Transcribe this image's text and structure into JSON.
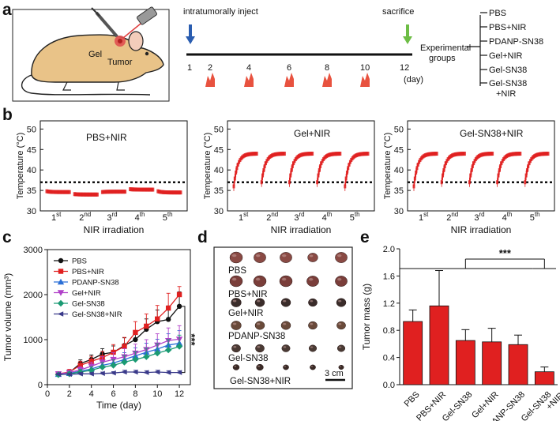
{
  "panel_letters": {
    "a": "a",
    "b": "b",
    "c": "c",
    "d": "d",
    "e": "e"
  },
  "panel_a": {
    "inject_label": "intratumorally inject",
    "sacrifice_label": "sacrifice",
    "gel_label": "Gel",
    "tumor_label": "Tumor",
    "timeline_days": [
      "1",
      "2",
      "4",
      "6",
      "8",
      "10",
      "12"
    ],
    "day_unit": "(day)",
    "groups_title_line1": "Experimental",
    "groups_title_line2": "groups",
    "groups": [
      "PBS",
      "PBS+NIR",
      "PDANP-SN38",
      "Gel+NIR",
      "Gel-SN38",
      "Gel-SN38\n+NIR"
    ],
    "colors": {
      "inject_arrow": "#2a5db0",
      "sacrifice_arrow": "#6dbd45",
      "laser": "#e8523f",
      "mouse_body": "#e9c388"
    }
  },
  "chart_data": [
    {
      "type": "scatter",
      "panel": "b1",
      "annotation": "PBS+NIR",
      "ylabel": "Temperature (°C)",
      "xlabel": "NIR irradiation",
      "ylim": [
        30,
        52
      ],
      "yticks": [
        "30",
        "35",
        "40",
        "45",
        "50"
      ],
      "x_groups": [
        {
          "base": "1",
          "sup": "st"
        },
        {
          "base": "2",
          "sup": "nd"
        },
        {
          "base": "3",
          "sup": "rd"
        },
        {
          "base": "4",
          "sup": "th"
        },
        {
          "base": "5",
          "sup": "th"
        }
      ],
      "threshold": 37,
      "segments": [
        {
          "start": 34.8,
          "plateau": 34.6
        },
        {
          "start": 34.1,
          "plateau": 34.0
        },
        {
          "start": 34.6,
          "plateau": 34.7
        },
        {
          "start": 35.3,
          "plateau": 35.2
        },
        {
          "start": 34.8,
          "plateau": 34.5
        }
      ],
      "color": "#e02020"
    },
    {
      "type": "scatter",
      "panel": "b2",
      "annotation": "Gel+NIR",
      "ylabel": "Temperature (°C)",
      "xlabel": "NIR irradiation",
      "ylim": [
        30,
        52
      ],
      "yticks": [
        "30",
        "35",
        "40",
        "45",
        "50"
      ],
      "x_groups": [
        {
          "base": "1",
          "sup": "st"
        },
        {
          "base": "2",
          "sup": "nd"
        },
        {
          "base": "3",
          "sup": "rd"
        },
        {
          "base": "4",
          "sup": "th"
        },
        {
          "base": "5",
          "sup": "th"
        }
      ],
      "threshold": 37,
      "segments": [
        {
          "start": 36,
          "plateau": 44
        },
        {
          "start": 37,
          "plateau": 44
        },
        {
          "start": 37,
          "plateau": 44
        },
        {
          "start": 37,
          "plateau": 44
        },
        {
          "start": 36,
          "plateau": 44
        }
      ],
      "color": "#e02020"
    },
    {
      "type": "scatter",
      "panel": "b3",
      "annotation": "Gel-SN38+NIR",
      "ylabel": "Temperature (°C)",
      "xlabel": "NIR irradiation",
      "ylim": [
        30,
        52
      ],
      "yticks": [
        "30",
        "35",
        "40",
        "45",
        "50"
      ],
      "x_groups": [
        {
          "base": "1",
          "sup": "st"
        },
        {
          "base": "2",
          "sup": "nd"
        },
        {
          "base": "3",
          "sup": "rd"
        },
        {
          "base": "4",
          "sup": "th"
        },
        {
          "base": "5",
          "sup": "th"
        }
      ],
      "threshold": 37,
      "segments": [
        {
          "start": 36,
          "plateau": 44
        },
        {
          "start": 37,
          "plateau": 44
        },
        {
          "start": 37,
          "plateau": 44
        },
        {
          "start": 37,
          "plateau": 44
        },
        {
          "start": 37,
          "plateau": 44
        }
      ],
      "color": "#e02020"
    },
    {
      "type": "line",
      "panel": "c",
      "ylabel": "Tumor volume (mm³)",
      "xlabel": "Time (day)",
      "ylim": [
        0,
        3000
      ],
      "xlim": [
        0,
        13
      ],
      "yticks": [
        "0",
        "1000",
        "2000",
        "3000"
      ],
      "xticks": [
        "0",
        "2",
        "4",
        "6",
        "8",
        "10",
        "12"
      ],
      "significance": "***",
      "x": [
        1,
        2,
        3,
        4,
        5,
        6,
        7,
        8,
        9,
        10,
        11,
        12
      ],
      "series": [
        {
          "name": "PBS",
          "color": "#111111",
          "marker": "circle",
          "values": [
            240,
            270,
            470,
            560,
            680,
            720,
            870,
            1000,
            1230,
            1400,
            1450,
            1740
          ],
          "errors": [
            40,
            50,
            80,
            100,
            120,
            140,
            170,
            200,
            230,
            260,
            300,
            320
          ]
        },
        {
          "name": "PBS+NIR",
          "color": "#e02020",
          "marker": "square",
          "values": [
            240,
            280,
            430,
            520,
            600,
            720,
            850,
            1160,
            1300,
            1460,
            1700,
            2000
          ],
          "errors": [
            40,
            60,
            90,
            110,
            140,
            170,
            200,
            240,
            270,
            300,
            330,
            180
          ]
        },
        {
          "name": "PDANP-SN38",
          "color": "#2a6fd6",
          "marker": "triangle",
          "values": [
            230,
            250,
            300,
            350,
            430,
            480,
            560,
            640,
            720,
            790,
            880,
            920
          ],
          "errors": [
            30,
            40,
            60,
            80,
            100,
            120,
            150,
            180,
            200,
            220,
            250,
            280
          ]
        },
        {
          "name": "Gel+NIR",
          "color": "#b040c8",
          "marker": "tri-down",
          "values": [
            240,
            270,
            330,
            410,
            500,
            560,
            620,
            700,
            780,
            880,
            980,
            1010
          ],
          "errors": [
            30,
            40,
            70,
            90,
            120,
            150,
            180,
            200,
            220,
            250,
            280,
            300
          ]
        },
        {
          "name": "Gel-SN38",
          "color": "#1a9a73",
          "marker": "diamond",
          "values": [
            220,
            240,
            280,
            320,
            390,
            430,
            500,
            560,
            620,
            700,
            770,
            850
          ],
          "errors": [
            30,
            40,
            60,
            80,
            100,
            120,
            150,
            170,
            190,
            210,
            230,
            250
          ]
        },
        {
          "name": "Gel-SN38+NIR",
          "color": "#3a3a8a",
          "marker": "tri-left",
          "values": [
            230,
            230,
            240,
            240,
            250,
            260,
            280,
            280,
            270,
            280,
            270,
            270
          ],
          "errors": [
            20,
            20,
            30,
            30,
            30,
            30,
            40,
            40,
            40,
            40,
            40,
            40
          ]
        }
      ]
    },
    {
      "type": "bar",
      "panel": "e",
      "ylabel": "Tumor mass (g)",
      "ylim": [
        0,
        2.0
      ],
      "yticks": [
        "0.0",
        "0.4",
        "0.8",
        "1.2",
        "1.6",
        "2.0"
      ],
      "categories": [
        "PBS",
        "PBS+NIR",
        "Gel-SN38",
        "Gel+NIR",
        "PDANP-SN38",
        "Gel-SN38\n+NIR"
      ],
      "values": [
        0.93,
        1.16,
        0.65,
        0.63,
        0.59,
        0.19
      ],
      "errors": [
        0.17,
        0.52,
        0.16,
        0.2,
        0.14,
        0.07
      ],
      "significance": "***",
      "color": "#e02020"
    }
  ],
  "panel_d": {
    "rows": [
      "PBS",
      "PBS+NIR",
      "Gel+NIR",
      "PDANP-SN38",
      "Gel-SN38",
      "Gel-SN38+NIR"
    ],
    "scale_bar": "3 cm",
    "tumor_sizes": [
      [
        1.0,
        0.95,
        0.95,
        0.8,
        0.95
      ],
      [
        1.0,
        1.0,
        1.0,
        0.95,
        0.95
      ],
      [
        0.8,
        0.75,
        0.75,
        0.7,
        0.75
      ],
      [
        0.8,
        0.75,
        0.75,
        0.7,
        0.7
      ],
      [
        0.7,
        0.7,
        0.65,
        0.6,
        0.6
      ],
      [
        0.5,
        0.55,
        0.45,
        0.45,
        0.4
      ]
    ]
  }
}
